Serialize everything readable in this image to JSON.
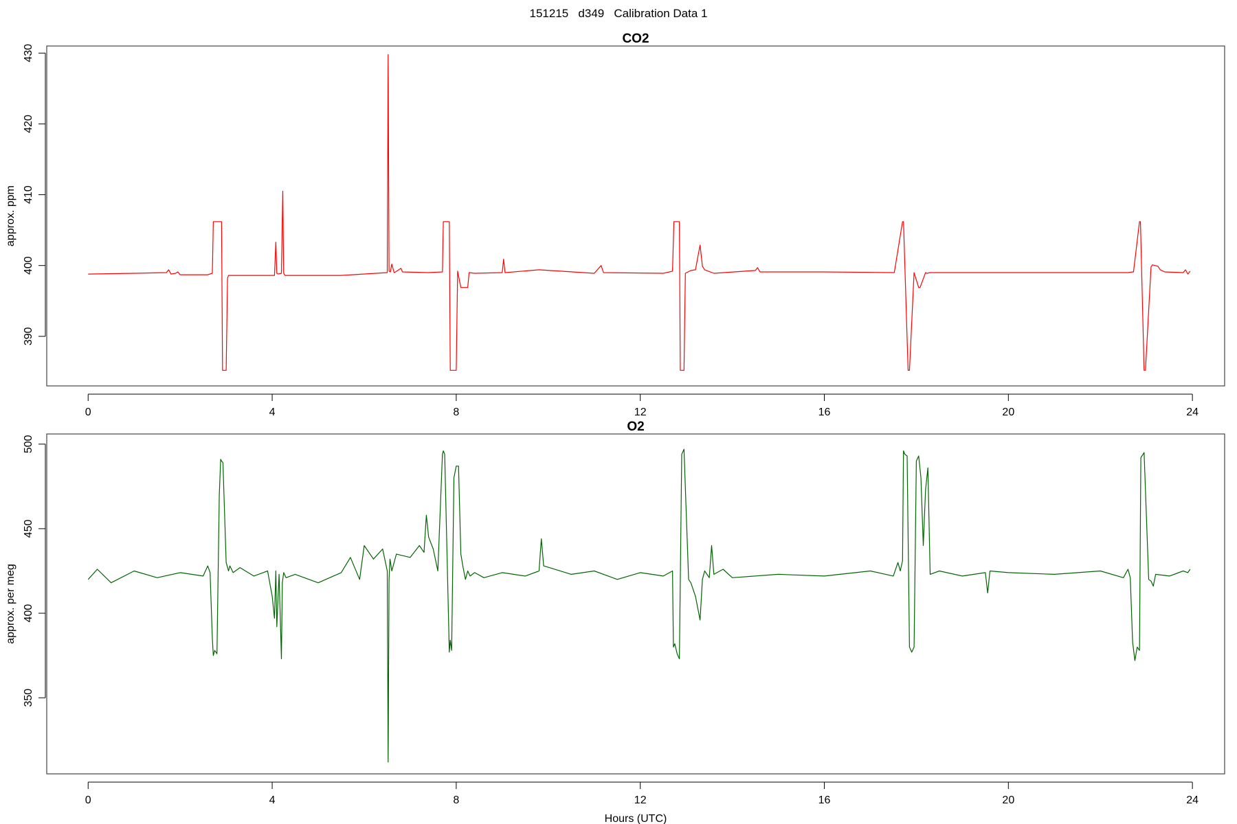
{
  "title": "151215   d349   Calibration Data 1",
  "chart_data": [
    {
      "type": "line",
      "title": "CO2",
      "xlabel": "",
      "ylabel": "approx. ppm",
      "xlim": [
        -0.9,
        24.7
      ],
      "ylim": [
        383,
        431
      ],
      "xticks": [
        0,
        4,
        8,
        12,
        16,
        20,
        24
      ],
      "yticks": [
        390,
        400,
        410,
        420,
        430
      ],
      "grid": false,
      "color": "#ff0000",
      "series": [
        {
          "x": [
            0,
            1.0,
            1.7,
            1.75,
            1.8,
            1.9,
            1.95,
            2.0,
            2.6,
            2.7,
            2.72,
            2.9,
            2.92,
            3.0,
            3.03,
            3.05,
            4.05,
            4.08,
            4.1,
            4.13,
            4.2,
            4.23,
            4.25,
            4.28,
            5.5,
            6.5,
            6.52,
            6.54,
            6.57,
            6.6,
            6.65,
            6.68,
            6.8,
            6.83,
            7.4,
            7.7,
            7.72,
            7.85,
            7.87,
            8.0,
            8.03,
            8.1,
            8.25,
            8.28,
            8.4,
            9.0,
            9.03,
            9.06,
            9.8,
            11.0,
            11.15,
            11.2,
            12.5,
            12.7,
            12.73,
            12.85,
            12.87,
            12.95,
            12.98,
            13.1,
            13.2,
            13.3,
            13.35,
            13.4,
            13.6,
            14.5,
            14.55,
            14.6,
            16.0,
            17.5,
            17.52,
            17.7,
            17.72,
            17.82,
            17.85,
            17.95,
            18.05,
            18.08,
            18.2,
            18.23,
            18.3,
            20.0,
            22.6,
            22.7,
            22.72,
            22.85,
            22.87,
            22.95,
            22.98,
            23.1,
            23.13,
            23.25,
            23.3,
            23.4,
            23.8,
            23.85,
            23.9,
            23.95
          ],
          "values": [
            398.8,
            398.9,
            399,
            399.4,
            398.8,
            398.9,
            399.1,
            398.7,
            398.7,
            398.9,
            406.2,
            406.2,
            385.2,
            385.2,
            398.2,
            398.6,
            398.6,
            403.3,
            398.9,
            398.8,
            398.9,
            410.5,
            398.9,
            398.6,
            398.6,
            399,
            429.8,
            399.2,
            399.1,
            400.2,
            399,
            399.1,
            399.6,
            399.1,
            399,
            399.1,
            406.2,
            406.2,
            385.2,
            385.2,
            399.2,
            396.9,
            396.9,
            399,
            398.9,
            399,
            400.9,
            399,
            399.4,
            398.9,
            400,
            399,
            398.9,
            399.2,
            406.2,
            406.2,
            385.2,
            385.2,
            398.9,
            399.3,
            399.4,
            402.9,
            399.9,
            399.4,
            398.9,
            399.3,
            399.7,
            399.1,
            399.1,
            399,
            399,
            406.2,
            406.2,
            385.2,
            385.2,
            399,
            396.9,
            396.9,
            399,
            398.9,
            399,
            399,
            399,
            399.1,
            399.1,
            406.2,
            406.2,
            385.2,
            385.2,
            399.8,
            400.1,
            399.9,
            399.4,
            399.1,
            399,
            399.4,
            398.8,
            399.2
          ]
        }
      ]
    },
    {
      "type": "line",
      "title": "O2",
      "xlabel": "Hours (UTC)",
      "ylabel": "approx. per meg",
      "xlim": [
        -0.9,
        24.7
      ],
      "ylim": [
        305,
        506
      ],
      "xticks": [
        0,
        4,
        8,
        12,
        16,
        20,
        24
      ],
      "yticks": [
        350,
        400,
        450,
        500
      ],
      "grid": false,
      "color": "#006400",
      "series": [
        {
          "x": [
            0,
            0.2,
            0.5,
            1.0,
            1.5,
            2.0,
            2.5,
            2.6,
            2.65,
            2.7,
            2.72,
            2.75,
            2.8,
            2.85,
            2.88,
            2.9,
            2.93,
            3.0,
            3.05,
            3.08,
            3.15,
            3.3,
            3.6,
            3.9,
            4.0,
            4.05,
            4.08,
            4.1,
            4.15,
            4.2,
            4.22,
            4.25,
            4.3,
            4.5,
            5.0,
            5.5,
            5.7,
            5.9,
            6.0,
            6.2,
            6.4,
            6.5,
            6.52,
            6.54,
            6.56,
            6.6,
            6.7,
            7.0,
            7.2,
            7.3,
            7.35,
            7.4,
            7.5,
            7.6,
            7.7,
            7.72,
            7.75,
            7.85,
            7.87,
            7.9,
            7.95,
            8.0,
            8.05,
            8.1,
            8.15,
            8.2,
            8.25,
            8.3,
            8.4,
            8.6,
            9.0,
            9.5,
            9.8,
            9.85,
            9.9,
            10.5,
            11.0,
            11.5,
            12.0,
            12.5,
            12.7,
            12.72,
            12.75,
            12.8,
            12.85,
            12.9,
            12.95,
            13.05,
            13.1,
            13.2,
            13.3,
            13.35,
            13.4,
            13.5,
            13.55,
            13.6,
            13.8,
            14.0,
            15.0,
            16.0,
            17.0,
            17.5,
            17.6,
            17.65,
            17.7,
            17.72,
            17.75,
            17.8,
            17.85,
            17.9,
            17.95,
            18.0,
            18.05,
            18.1,
            18.15,
            18.2,
            18.25,
            18.3,
            18.5,
            19.0,
            19.5,
            19.55,
            19.6,
            20.0,
            21.0,
            22.0,
            22.5,
            22.6,
            22.65,
            22.7,
            22.75,
            22.8,
            22.85,
            22.88,
            22.95,
            23.05,
            23.1,
            23.15,
            23.2,
            23.5,
            23.8,
            23.9,
            23.95
          ],
          "values": [
            420,
            426,
            418,
            425,
            421,
            424,
            422,
            428,
            424,
            385,
            375,
            378,
            376,
            470,
            491,
            490,
            489,
            430,
            425,
            428,
            424,
            427,
            422,
            425,
            410,
            397,
            425,
            392,
            423,
            373,
            418,
            424,
            421,
            423,
            418,
            424,
            433,
            420,
            440,
            432,
            438,
            425,
            312,
            420,
            432,
            425,
            435,
            433,
            440,
            436,
            458,
            445,
            438,
            425,
            494,
            496,
            494,
            377,
            384,
            378,
            480,
            487,
            487,
            435,
            427,
            420,
            425,
            422,
            424,
            421,
            424,
            422,
            425,
            444,
            428,
            423,
            425,
            420,
            424,
            422,
            425,
            380,
            382,
            376,
            373,
            494,
            497,
            420,
            418,
            410,
            396,
            420,
            425,
            421,
            440,
            423,
            426,
            421,
            423,
            422,
            425,
            422,
            430,
            425,
            431,
            496,
            494,
            493,
            380,
            377,
            380,
            490,
            493,
            480,
            440,
            473,
            486,
            423,
            425,
            422,
            424,
            412,
            425,
            424,
            423,
            425,
            421,
            426,
            421,
            383,
            372,
            380,
            378,
            492,
            495,
            420,
            419,
            416,
            423,
            422,
            425,
            424,
            426
          ]
        }
      ]
    }
  ]
}
